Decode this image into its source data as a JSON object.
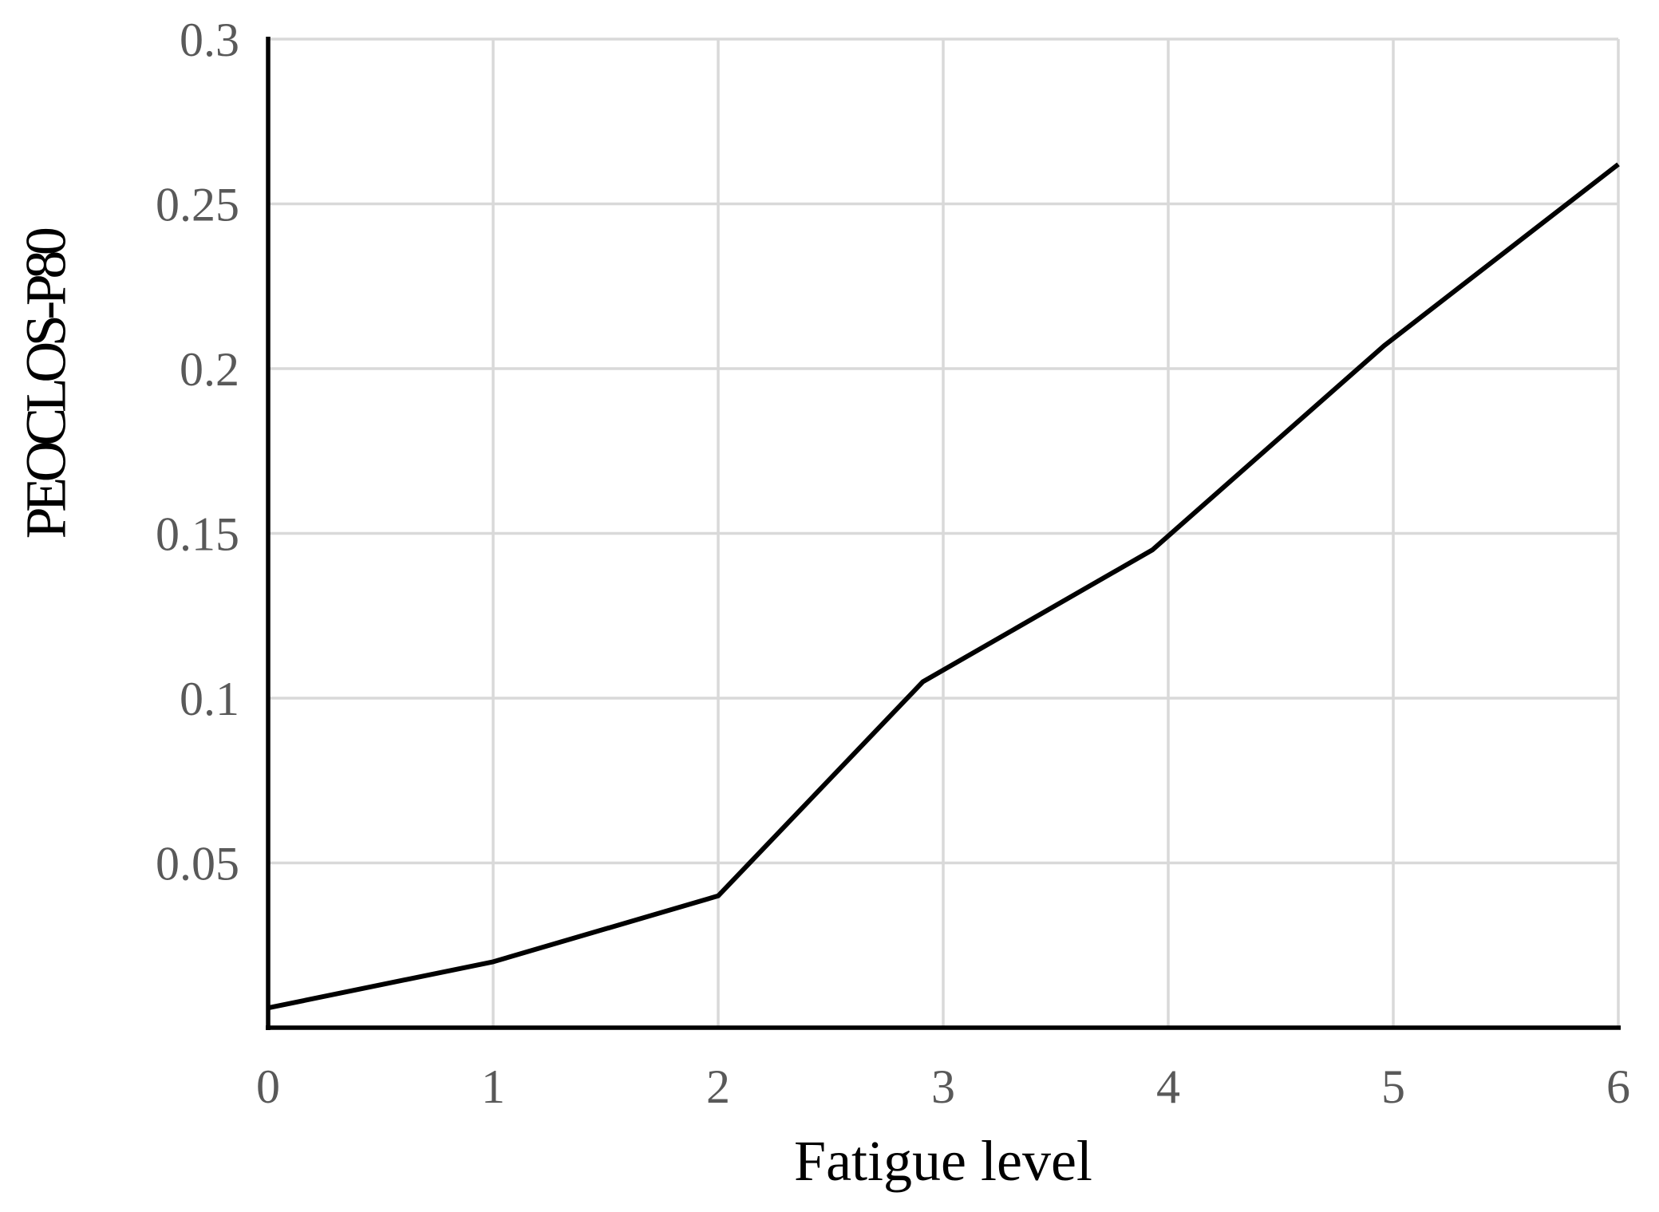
{
  "figure": {
    "background": "#ffffff"
  },
  "chart_data": {
    "type": "line",
    "title": "",
    "xlabel": "Fatigue level",
    "ylabel": "PEOCLOS-P80",
    "series": [
      {
        "name": "PEOCLOS-P80",
        "x": [
          0,
          1,
          2,
          2.91,
          3.93,
          4.96,
          6
        ],
        "y": [
          0.006,
          0.02,
          0.04,
          0.105,
          0.145,
          0.207,
          0.262
        ],
        "color": "#000000",
        "line_width": 6
      }
    ],
    "xlim": [
      0,
      6
    ],
    "ylim": [
      0,
      0.3
    ],
    "x_ticks": [
      0,
      1,
      2,
      3,
      4,
      5,
      6
    ],
    "x_tick_labels": [
      "0",
      "1",
      "2",
      "3",
      "4",
      "5",
      "6"
    ],
    "y_ticks": [
      0.05,
      0.1,
      0.15,
      0.2,
      0.25,
      0.3
    ],
    "y_tick_labels": [
      "0.05",
      "0.1",
      "0.15",
      "0.2",
      "0.25",
      "0.3"
    ],
    "grid": true,
    "legend": false,
    "grid_color": "#d9d9d9",
    "axis_color": "#000000",
    "tick_label_color": "#595959",
    "axis_title_color": "#000000"
  }
}
